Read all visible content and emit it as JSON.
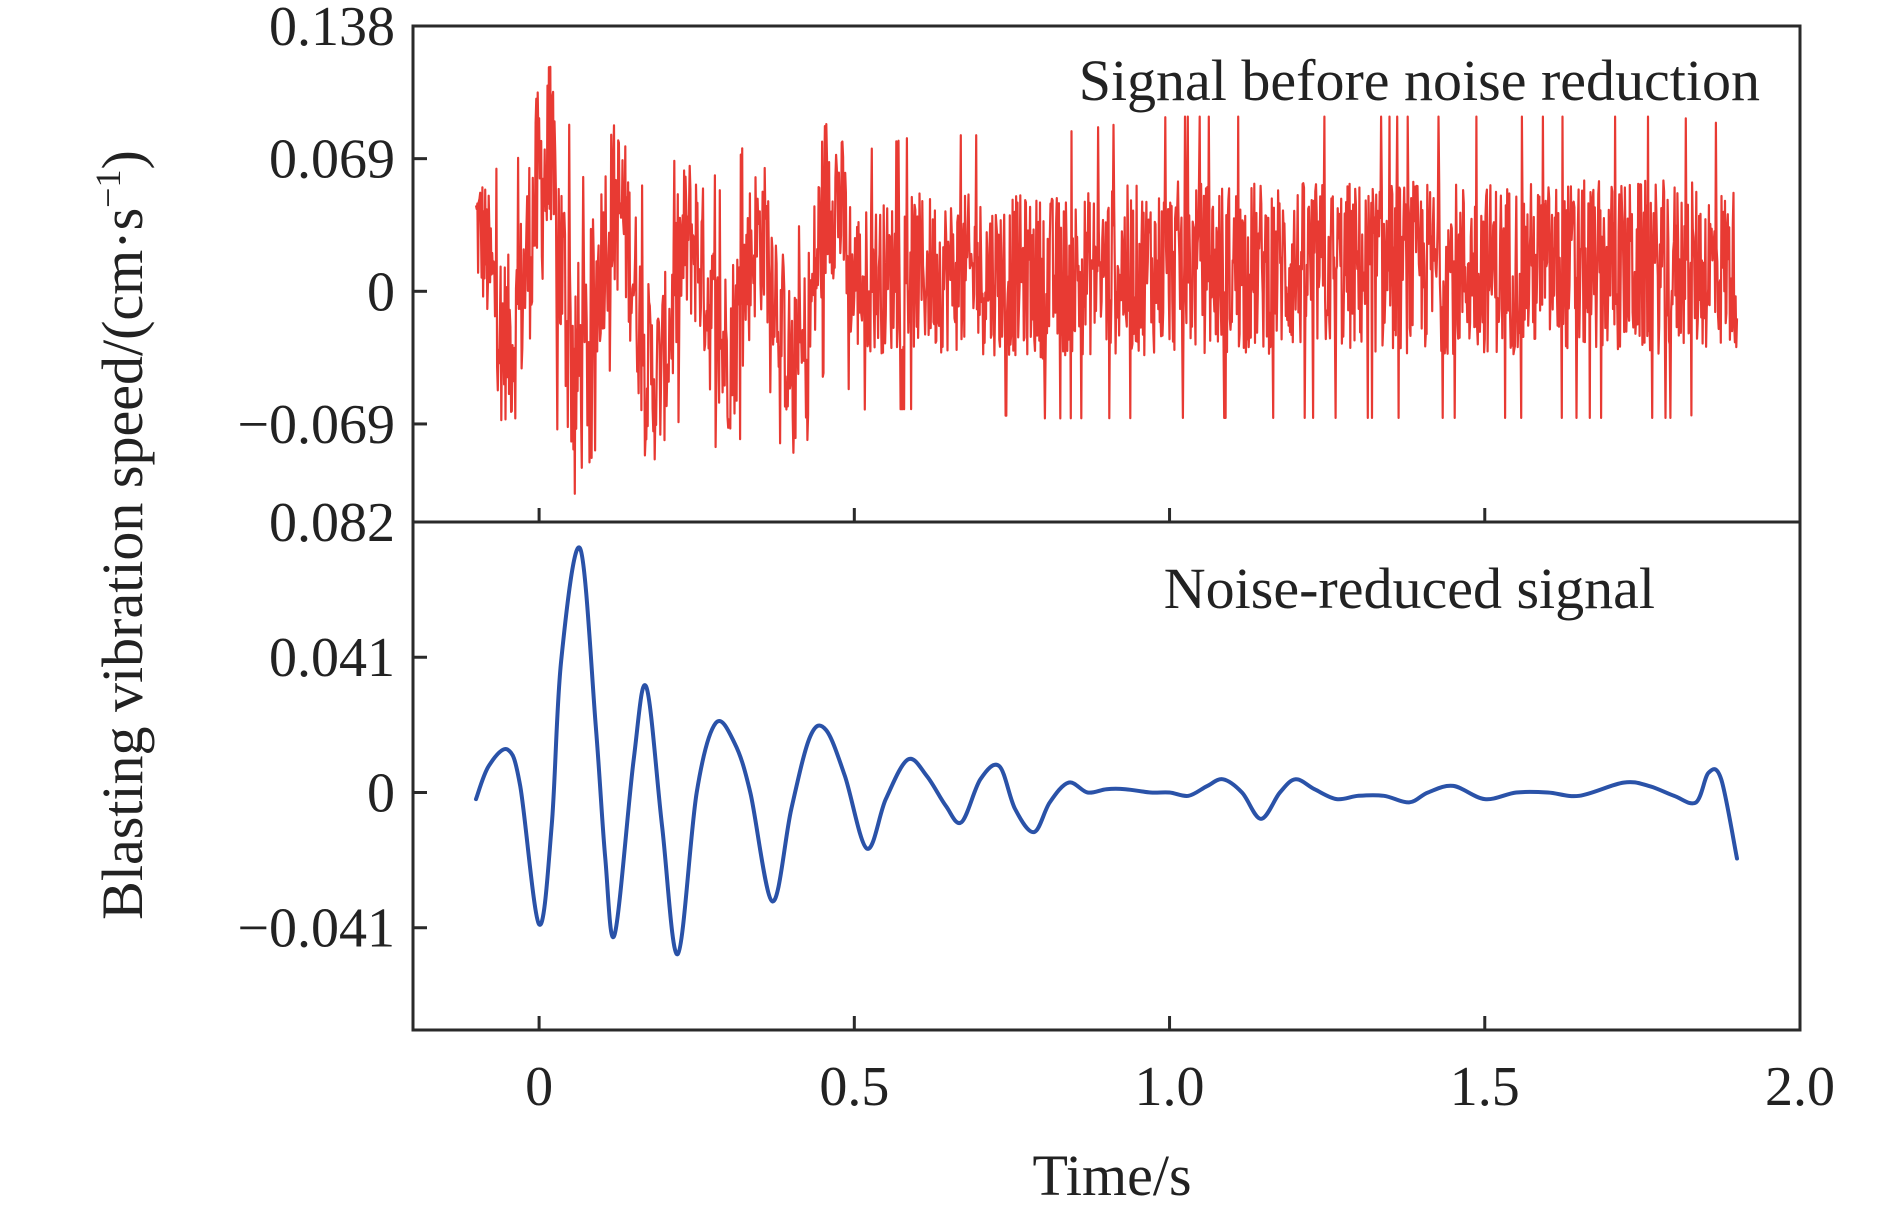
{
  "figure": {
    "ylabel": "Blasting vibration speed/(cm·s",
    "ylabel_sup": "−1",
    "ylabel_close": ")",
    "xlabel": "Time/s"
  },
  "chart_data": [
    {
      "type": "line",
      "title": "Signal before noise reduction",
      "color": "#e83a33",
      "xlim": [
        -0.2,
        2.0
      ],
      "ylim": [
        -0.12,
        0.138
      ],
      "yticks": [
        0.138,
        0.069,
        0,
        -0.069
      ],
      "ytick_labels": [
        "0.138",
        "0.069",
        "0",
        "−0.069"
      ],
      "xticks": [
        0,
        0.5,
        1.0,
        1.5
      ],
      "series": [
        {
          "x_range": [
            -0.1,
            1.9
          ],
          "envelope": {
            "x": [
              -0.1,
              0.0,
              0.05,
              0.1,
              0.15,
              0.2,
              0.25,
              0.3,
              0.35,
              0.4,
              0.45,
              0.5,
              0.6,
              0.8,
              1.0,
              1.2,
              1.4,
              1.6,
              1.8,
              1.9
            ],
            "max": [
              0.07,
              0.115,
              0.12,
              0.095,
              0.085,
              0.065,
              0.075,
              0.095,
              0.07,
              0.06,
              0.11,
              0.075,
              0.085,
              0.085,
              0.095,
              0.095,
              0.095,
              0.095,
              0.095,
              0.09
            ],
            "min": [
              -0.055,
              -0.085,
              -0.11,
              -0.075,
              -0.08,
              -0.095,
              -0.09,
              -0.075,
              -0.08,
              -0.085,
              -0.07,
              -0.065,
              -0.065,
              -0.07,
              -0.07,
              -0.07,
              -0.07,
              -0.07,
              -0.07,
              -0.065
            ]
          }
        }
      ]
    },
    {
      "type": "line",
      "title": "Noise-reduced signal",
      "color": "#2a52a8",
      "xlim": [
        -0.2,
        2.0
      ],
      "ylim": [
        -0.072,
        0.082
      ],
      "yticks": [
        0.082,
        0.041,
        0,
        -0.041
      ],
      "ytick_labels": [
        "0.082",
        "0.041",
        "0",
        "−0.041"
      ],
      "xticks": [
        0,
        0.5,
        1.0,
        1.5,
        2.0
      ],
      "xtick_labels": [
        "0",
        "0.5",
        "1.0",
        "1.5",
        "2.0"
      ],
      "series": [
        {
          "x": [
            -0.1,
            -0.08,
            -0.05,
            -0.03,
            0.0,
            0.02,
            0.035,
            0.065,
            0.09,
            0.105,
            0.12,
            0.15,
            0.17,
            0.195,
            0.22,
            0.25,
            0.28,
            0.31,
            0.335,
            0.37,
            0.4,
            0.43,
            0.455,
            0.485,
            0.52,
            0.55,
            0.585,
            0.615,
            0.645,
            0.67,
            0.7,
            0.73,
            0.755,
            0.785,
            0.81,
            0.84,
            0.87,
            0.9,
            0.93,
            0.97,
            1.0,
            1.03,
            1.06,
            1.085,
            1.115,
            1.145,
            1.175,
            1.2,
            1.23,
            1.265,
            1.3,
            1.34,
            1.38,
            1.41,
            1.45,
            1.5,
            1.55,
            1.6,
            1.65,
            1.72,
            1.76,
            1.8,
            1.835,
            1.855,
            1.875,
            1.9
          ],
          "y": [
            -0.002,
            0.008,
            0.013,
            0.002,
            -0.04,
            -0.01,
            0.04,
            0.074,
            0.02,
            -0.02,
            -0.043,
            0.01,
            0.032,
            -0.01,
            -0.049,
            0.0,
            0.021,
            0.015,
            0.0,
            -0.033,
            -0.005,
            0.017,
            0.019,
            0.005,
            -0.017,
            -0.002,
            0.01,
            0.005,
            -0.004,
            -0.009,
            0.004,
            0.008,
            -0.005,
            -0.012,
            -0.003,
            0.003,
            0.0,
            0.001,
            0.001,
            0.0,
            0.0,
            -0.001,
            0.002,
            0.004,
            0.0,
            -0.008,
            0.0,
            0.004,
            0.001,
            -0.002,
            -0.001,
            -0.001,
            -0.003,
            0.0,
            0.002,
            -0.002,
            0.0,
            0.0,
            -0.001,
            0.003,
            0.002,
            -0.001,
            -0.003,
            0.006,
            0.004,
            -0.02
          ]
        }
      ]
    }
  ]
}
